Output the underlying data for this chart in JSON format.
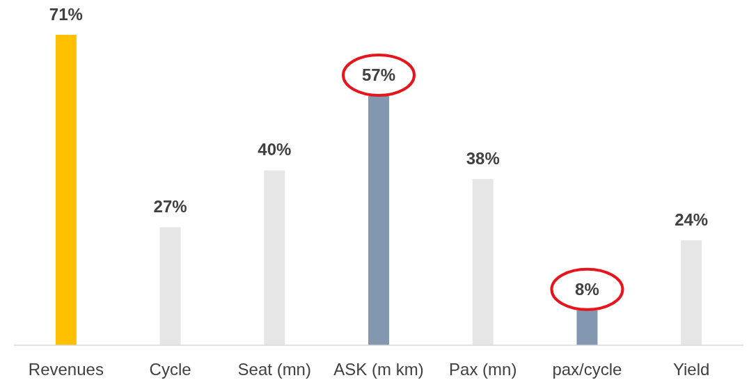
{
  "chart_data": {
    "type": "bar",
    "categories": [
      "Revenues",
      "Cycle",
      "Seat (mn)",
      "ASK (m km)",
      "Pax (mn)",
      "pax/cycle",
      "Yield"
    ],
    "values": [
      71,
      27,
      40,
      57,
      38,
      8,
      24
    ],
    "colors": [
      "#ffc000",
      "#e7e6e6",
      "#e7e6e6",
      "#8497b0",
      "#e7e6e6",
      "#8497b0",
      "#e7e6e6"
    ],
    "value_labels": [
      "71%",
      "27%",
      "40%",
      "57%",
      "38%",
      "8%",
      "24%"
    ]
  }
}
